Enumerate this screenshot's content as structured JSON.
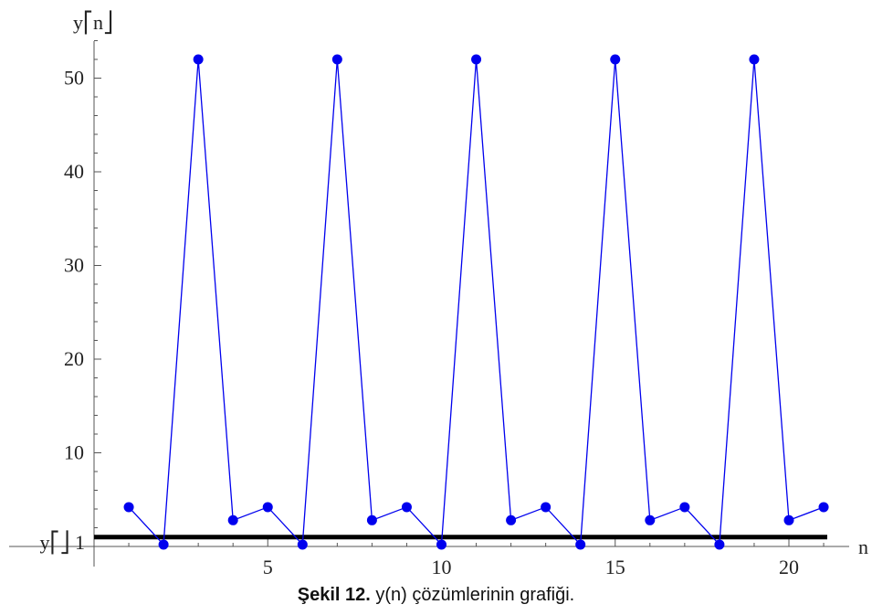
{
  "chart_data": {
    "type": "line",
    "title": "",
    "xlabel": "n",
    "ylabel": "y⎡n⎦",
    "xlim": [
      0,
      21.2
    ],
    "ylim": [
      0,
      55
    ],
    "x_ticks": [
      5,
      10,
      15,
      20
    ],
    "y_ticks": [
      10,
      20,
      30,
      40,
      50
    ],
    "grid": false,
    "series": [
      {
        "color": "#0000ee",
        "x": [
          1,
          2,
          3,
          4,
          5,
          6,
          7,
          8,
          9,
          10,
          11,
          12,
          13,
          14,
          15,
          16,
          17,
          18,
          19,
          20,
          21
        ],
        "values": [
          4.2,
          0.2,
          52,
          2.8,
          4.2,
          0.2,
          52,
          2.8,
          4.2,
          0.2,
          52,
          2.8,
          4.2,
          0.2,
          52,
          2.8,
          4.2,
          0.2,
          52,
          2.8,
          4.2
        ]
      }
    ],
    "reference_line": {
      "value": 1,
      "label_prefix": "y⎡",
      "label_suffix": "⎦ 1",
      "color": "#000000"
    }
  },
  "caption": {
    "bold": "Şekil 12.",
    "text": "y(n) çözümlerinin grafiği."
  }
}
